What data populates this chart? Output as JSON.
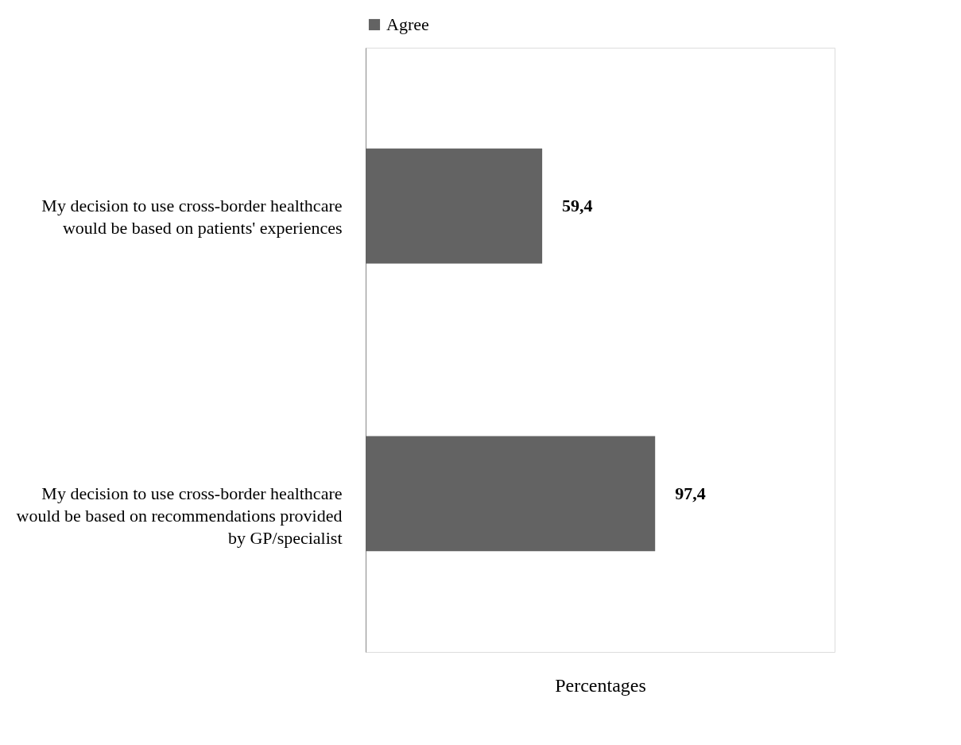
{
  "chart_data": {
    "type": "bar",
    "orientation": "horizontal",
    "xlabel": "Percentages",
    "legend": "top",
    "categories": [
      "My decision to use cross-border healthcare would be based on patients' experiences",
      "My decision to use cross-border healthcare would be based on recommendations provided by GP/specialist"
    ],
    "series": [
      {
        "name": "Agree",
        "color": "#636363",
        "values": [
          59.4,
          97.4
        ],
        "value_labels": [
          "59,4",
          "97,4"
        ]
      }
    ],
    "grid": false
  }
}
